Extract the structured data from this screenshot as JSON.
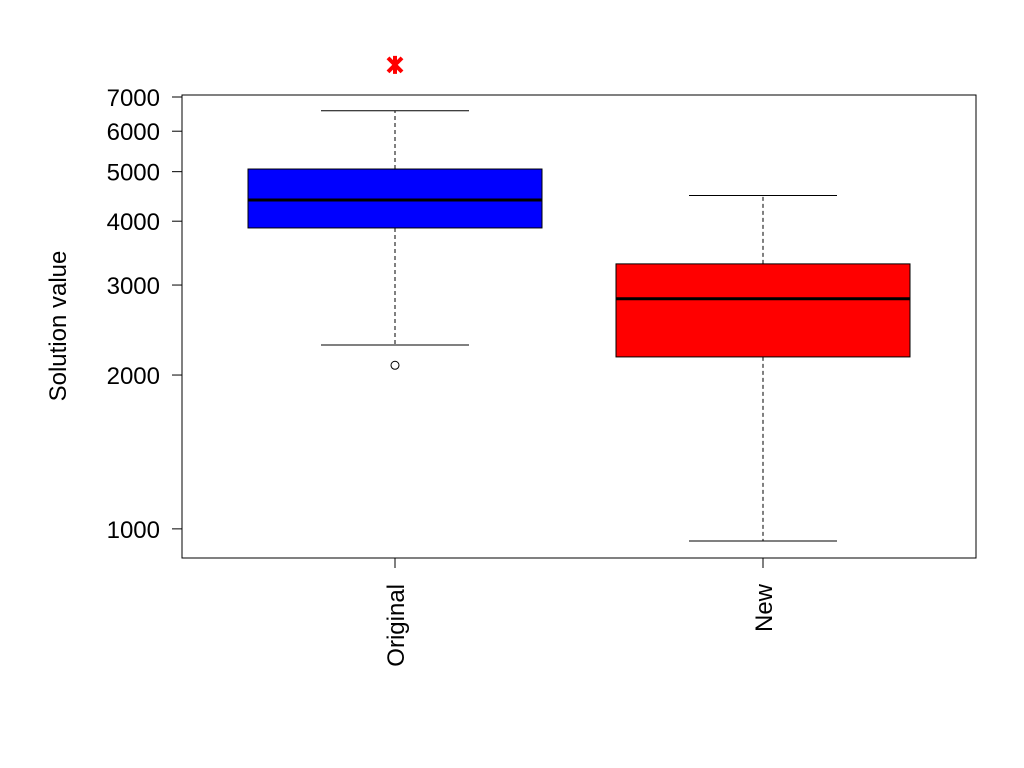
{
  "chart_data": {
    "type": "box",
    "ylabel": "Solution value",
    "categories": [
      "Original",
      "New"
    ],
    "boxes": [
      {
        "whisker_low": 2290,
        "q1": 3880,
        "median": 4400,
        "q3": 5060,
        "whisker_high": 6580,
        "outliers": [
          2090
        ],
        "star": 8090,
        "color": "#0000ff",
        "star_color": "#ff0000"
      },
      {
        "whisker_low": 947,
        "q1": 2170,
        "median": 2820,
        "q3": 3300,
        "whisker_high": 4490,
        "outliers": [],
        "color": "#ff0000"
      }
    ],
    "log_y": true,
    "ylim": [
      877,
      7063
    ],
    "yticks": [
      1000,
      2000,
      3000,
      4000,
      5000,
      6000,
      7000
    ]
  }
}
